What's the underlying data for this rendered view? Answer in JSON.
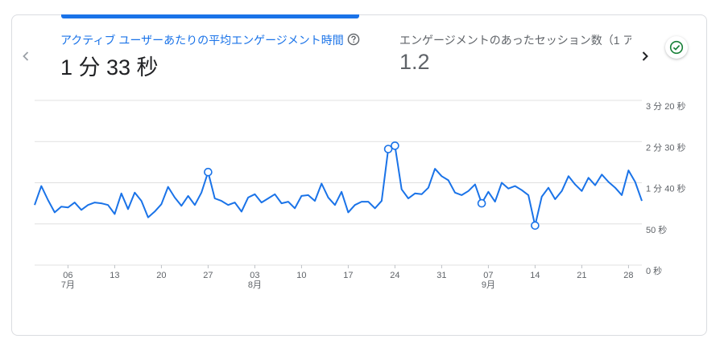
{
  "metrics": [
    {
      "label": "アクティブ ユーザーあたりの平均エンゲージメント時間",
      "value": "1 分 33 秒"
    },
    {
      "label": "エンゲージメントのあったセッション数（1 ア",
      "value": "1.2"
    }
  ],
  "colors": {
    "accent": "#1a73e8",
    "line": "#1a73e8",
    "label_active": "#1a73e8",
    "text_dark": "#202124",
    "text_muted": "#5f6368",
    "grid": "#e0e0e0",
    "check": "#188038"
  },
  "icons": {
    "prev": "chevron-left-icon",
    "next": "chevron-right-icon",
    "help": "help-circle-icon",
    "status": "check-circle-icon"
  },
  "chart_data": {
    "type": "line",
    "y_unit": "seconds",
    "ylim": [
      0,
      200
    ],
    "yticks": [
      {
        "value": 0,
        "label": "0 秒"
      },
      {
        "value": 50,
        "label": "50 秒"
      },
      {
        "value": 100,
        "label": "1 分 40 秒"
      },
      {
        "value": 150,
        "label": "2 分 30 秒"
      },
      {
        "value": 200,
        "label": "3 分 20 秒"
      }
    ],
    "xlim": [
      "2024-07-01",
      "2024-09-30"
    ],
    "xticks": [
      {
        "date": "2024-07-06",
        "day": "06",
        "month": "7月"
      },
      {
        "date": "2024-07-13",
        "day": "13",
        "month": ""
      },
      {
        "date": "2024-07-20",
        "day": "20",
        "month": ""
      },
      {
        "date": "2024-07-27",
        "day": "27",
        "month": ""
      },
      {
        "date": "2024-08-03",
        "day": "03",
        "month": "8月"
      },
      {
        "date": "2024-08-10",
        "day": "10",
        "month": ""
      },
      {
        "date": "2024-08-17",
        "day": "17",
        "month": ""
      },
      {
        "date": "2024-08-24",
        "day": "24",
        "month": ""
      },
      {
        "date": "2024-08-31",
        "day": "31",
        "month": ""
      },
      {
        "date": "2024-09-07",
        "day": "07",
        "month": "9月"
      },
      {
        "date": "2024-09-14",
        "day": "14",
        "month": ""
      },
      {
        "date": "2024-09-21",
        "day": "21",
        "month": ""
      },
      {
        "date": "2024-09-28",
        "day": "28",
        "month": ""
      }
    ],
    "series": [
      {
        "start_date": "2024-07-01",
        "values": [
          73,
          96,
          79,
          64,
          71,
          70,
          76,
          67,
          73,
          76,
          75,
          73,
          62,
          87,
          68,
          88,
          78,
          58,
          65,
          74,
          95,
          82,
          72,
          84,
          73,
          88,
          113,
          81,
          78,
          73,
          76,
          65,
          82,
          86,
          76,
          81,
          86,
          75,
          77,
          69,
          84,
          85,
          78,
          99,
          82,
          73,
          89,
          64,
          73,
          77,
          77,
          69,
          78,
          141,
          145,
          92,
          81,
          87,
          86,
          94,
          117,
          108,
          103,
          88,
          85,
          90,
          98,
          75,
          89,
          77,
          100,
          93,
          96,
          91,
          85,
          48,
          83,
          94,
          80,
          90,
          108,
          98,
          90,
          106,
          97,
          110,
          101,
          94,
          85,
          115,
          101,
          78
        ],
        "markers": [
          26,
          53,
          54,
          67,
          75
        ]
      }
    ]
  }
}
